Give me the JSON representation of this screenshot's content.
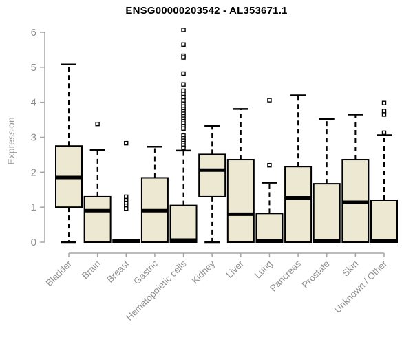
{
  "title": "ENSG00000203542 - AL353671.1",
  "chart_data": {
    "type": "boxplot",
    "title": "ENSG00000203542 - AL353671.1",
    "xlabel": "",
    "ylabel": "Expression",
    "ylim": [
      0,
      6
    ],
    "yticks": [
      0,
      1,
      2,
      3,
      4,
      5,
      6
    ],
    "grid": false,
    "legend": false,
    "categories": [
      "Bladder",
      "Brain",
      "Breast",
      "Gastric",
      "Hematopoietic cells",
      "Kidney",
      "Liver",
      "Lung",
      "Pancreas",
      "Prostate",
      "Skin",
      "Unknown / Other"
    ],
    "series": [
      {
        "category": "Bladder",
        "whisker_low": 0,
        "q1": 1.0,
        "median": 1.85,
        "q3": 2.75,
        "whisker_high": 5.08,
        "outliers": []
      },
      {
        "category": "Brain",
        "whisker_low": 0,
        "q1": 0,
        "median": 0.9,
        "q3": 1.3,
        "whisker_high": 2.64,
        "outliers": [
          3.38
        ]
      },
      {
        "category": "Breast",
        "whisker_low": 0,
        "q1": 0,
        "median": 0.03,
        "q3": 0.06,
        "whisker_high": 0.06,
        "outliers": [
          2.83,
          1.3,
          1.2,
          1.12,
          1.04,
          0.96
        ]
      },
      {
        "category": "Gastric",
        "whisker_low": 0,
        "q1": 0,
        "median": 0.9,
        "q3": 1.84,
        "whisker_high": 2.73,
        "outliers": []
      },
      {
        "category": "Hematopoietic cells",
        "whisker_low": 0,
        "q1": 0,
        "median": 0.06,
        "q3": 1.05,
        "whisker_high": 2.62,
        "outliers": [
          6.07,
          5.65,
          5.33,
          5.28,
          4.82,
          4.51,
          4.33,
          4.24,
          4.15,
          4.05,
          3.96,
          3.88,
          3.81,
          3.74,
          3.67,
          3.6,
          3.53,
          3.46,
          3.39,
          3.32,
          3.25,
          3.05,
          2.97,
          2.9,
          2.83,
          2.76,
          2.7
        ]
      },
      {
        "category": "Kidney",
        "whisker_low": 0,
        "q1": 1.3,
        "median": 2.06,
        "q3": 2.51,
        "whisker_high": 3.33,
        "outliers": []
      },
      {
        "category": "Liver",
        "whisker_low": 0,
        "q1": 0,
        "median": 0.8,
        "q3": 2.36,
        "whisker_high": 3.81,
        "outliers": []
      },
      {
        "category": "Lung",
        "whisker_low": 0,
        "q1": 0,
        "median": 0.04,
        "q3": 0.82,
        "whisker_high": 1.7,
        "outliers": [
          4.06,
          2.2
        ]
      },
      {
        "category": "Pancreas",
        "whisker_low": 0,
        "q1": 0,
        "median": 1.27,
        "q3": 2.16,
        "whisker_high": 4.2,
        "outliers": []
      },
      {
        "category": "Prostate",
        "whisker_low": 0,
        "q1": 0,
        "median": 0.04,
        "q3": 1.67,
        "whisker_high": 3.52,
        "outliers": []
      },
      {
        "category": "Skin",
        "whisker_low": 0,
        "q1": 0,
        "median": 1.14,
        "q3": 2.36,
        "whisker_high": 3.65,
        "outliers": []
      },
      {
        "category": "Unknown / Other",
        "whisker_low": 0,
        "q1": 0,
        "median": 0.04,
        "q3": 1.2,
        "whisker_high": 3.06,
        "outliers": [
          3.98,
          3.75,
          3.65,
          3.13
        ]
      }
    ],
    "colors": {
      "background": "#FFFFFF",
      "box_fill": "#EDE8D1",
      "box_border": "#000000",
      "median": "#000000",
      "whisker": "#000000",
      "outlier": "#000000",
      "axis": "#A6A6A6",
      "tick_label": "#8E8E8E",
      "axis_label": "#9C9C9C",
      "title": "#000000"
    }
  }
}
